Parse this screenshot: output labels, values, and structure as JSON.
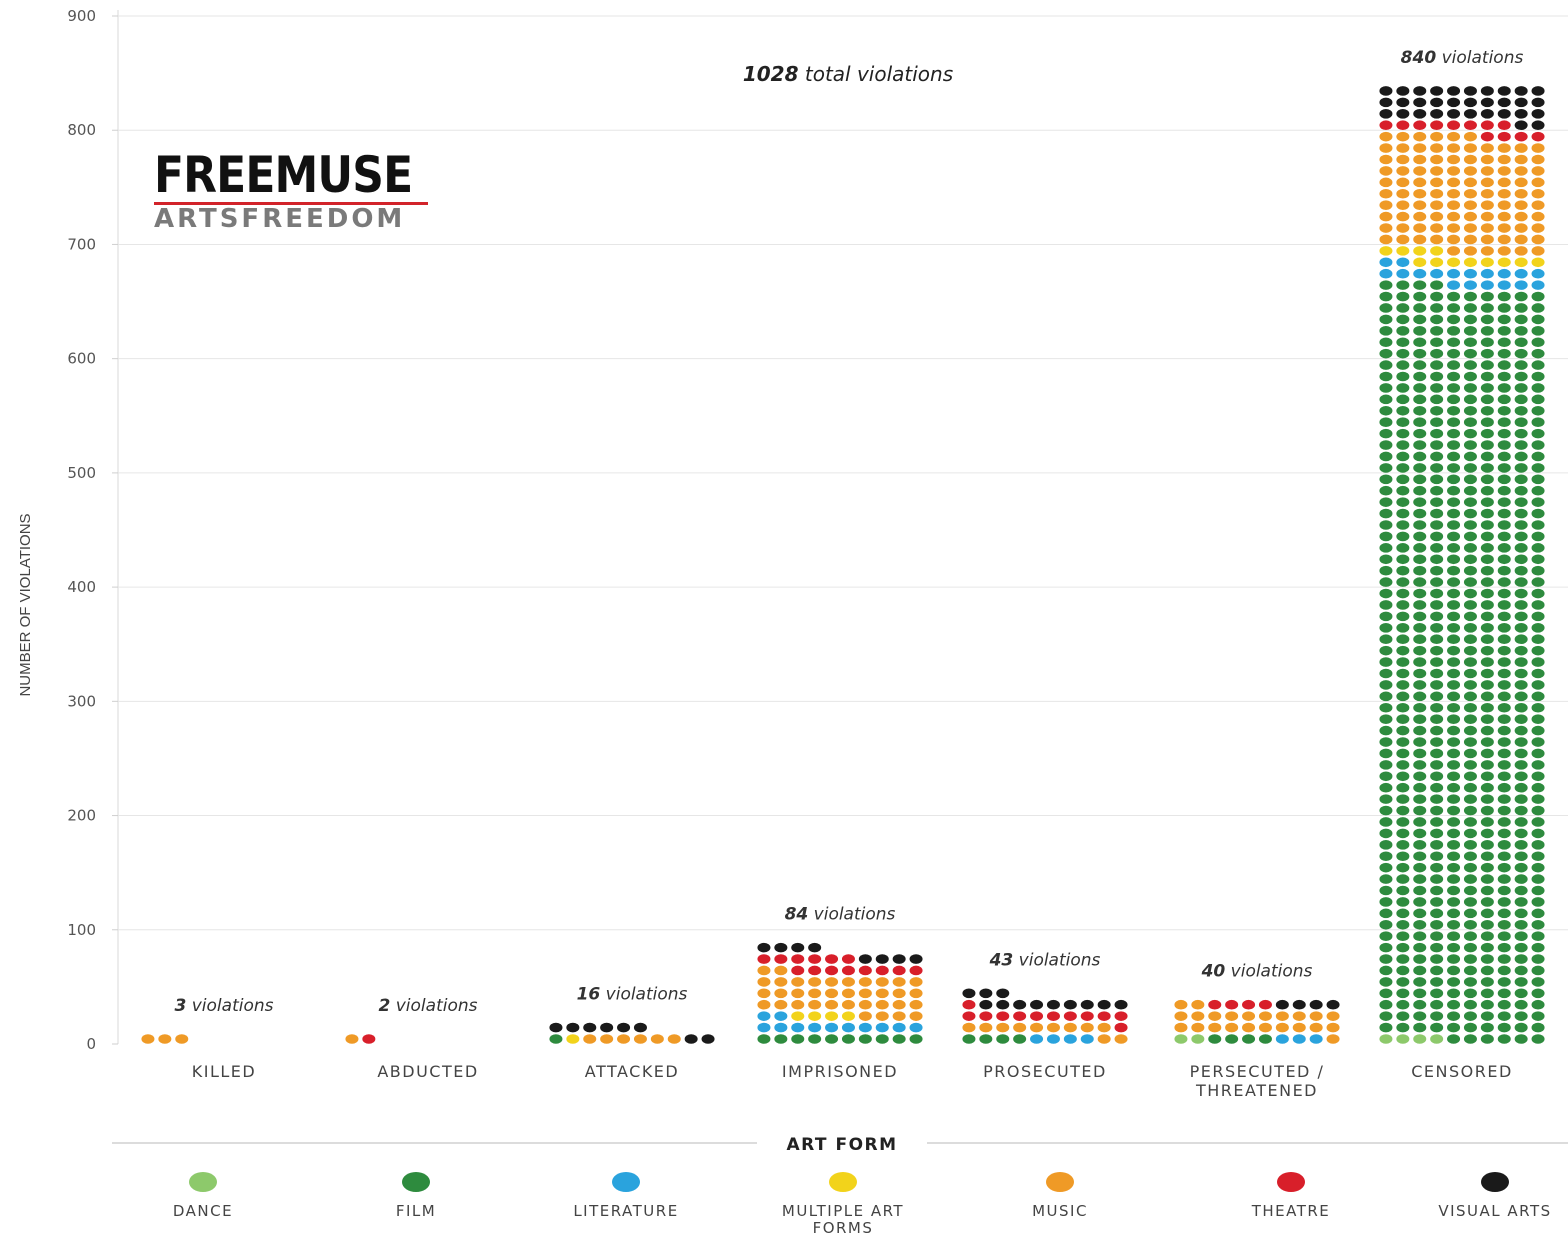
{
  "brand": {
    "name": "FREEMUSE",
    "tagline": "ARTSFREEDOM"
  },
  "chart_data": {
    "type": "bar",
    "subtype": "stacked dot-matrix (each dot = 1 violation)",
    "title": "1028 total violations",
    "ylabel": "NUMBER OF VIOLATIONS",
    "ylim": [
      0,
      900
    ],
    "yticks": [
      0,
      100,
      200,
      300,
      400,
      500,
      600,
      700,
      800,
      900
    ],
    "grid": true,
    "categories": [
      {
        "label": "KILLED",
        "line2": "",
        "annotation_num": "3",
        "annotation_text": "violations",
        "total": 3
      },
      {
        "label": "ABDUCTED",
        "line2": "",
        "annotation_num": "2",
        "annotation_text": "violations",
        "total": 2
      },
      {
        "label": "ATTACKED",
        "line2": "",
        "annotation_num": "16",
        "annotation_text": "violations",
        "total": 16
      },
      {
        "label": "IMPRISONED",
        "line2": "",
        "annotation_num": "84",
        "annotation_text": "violations",
        "total": 84
      },
      {
        "label": "PROSECUTED",
        "line2": "",
        "annotation_num": "43",
        "annotation_text": "violations",
        "total": 43
      },
      {
        "label": "PERSECUTED /",
        "line2": "THREATENED",
        "annotation_num": "40",
        "annotation_text": "violations",
        "total": 40
      },
      {
        "label": "CENSORED",
        "line2": "",
        "annotation_num": "840",
        "annotation_text": "violations",
        "total": 840
      }
    ],
    "legend_title": "ART FORM",
    "legend_position": "bottom",
    "series": [
      {
        "name": "DANCE",
        "line2": "",
        "color": "#8dc96b",
        "values": [
          0,
          0,
          0,
          0,
          0,
          2,
          4
        ]
      },
      {
        "name": "FILM",
        "line2": "",
        "color": "#2e8b3e",
        "values": [
          0,
          0,
          1,
          10,
          4,
          4,
          660
        ]
      },
      {
        "name": "LITERATURE",
        "line2": "",
        "color": "#2aa3dd",
        "values": [
          0,
          0,
          0,
          12,
          4,
          3,
          18
        ]
      },
      {
        "name": "MULTIPLE ART",
        "line2": "FORMS",
        "color": "#f2d31b",
        "values": [
          0,
          0,
          1,
          4,
          0,
          0,
          12
        ]
      },
      {
        "name": "MUSIC",
        "line2": "",
        "color": "#ef9a26",
        "values": [
          3,
          1,
          6,
          36,
          11,
          23,
          102
        ]
      },
      {
        "name": "THEATRE",
        "line2": "",
        "color": "#d81f2a",
        "values": [
          0,
          1,
          0,
          14,
          12,
          4,
          12
        ]
      },
      {
        "name": "VISUAL ARTS",
        "line2": "",
        "color": "#1a1a1a",
        "values": [
          0,
          0,
          8,
          8,
          12,
          4,
          32
        ]
      }
    ]
  }
}
